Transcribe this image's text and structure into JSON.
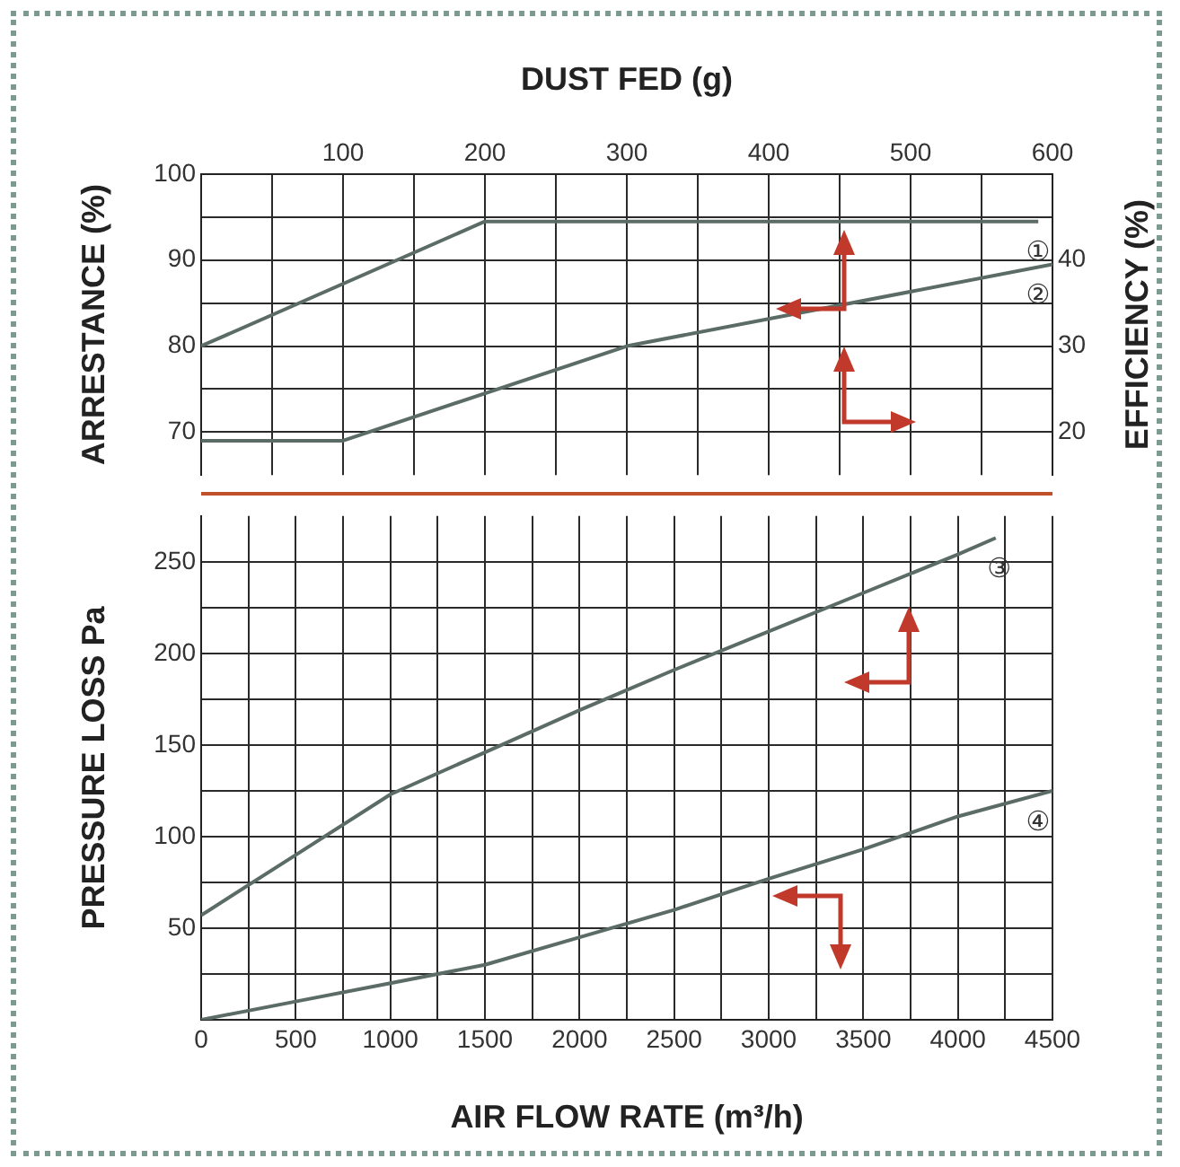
{
  "chart_data": [
    {
      "type": "line",
      "xlabel": "DUST FED (g)",
      "ylabel": "ARRESTANCE (%)",
      "y2label": "EFFICIENCY (%)",
      "xlim": [
        0,
        600
      ],
      "xticks": [
        {
          "value": 0,
          "label": null
        },
        {
          "value": 50,
          "label": null
        },
        100,
        {
          "value": 150,
          "label": null
        },
        200,
        {
          "value": 250,
          "label": null
        },
        300,
        {
          "value": 350,
          "label": null
        },
        400,
        {
          "value": 450,
          "label": null
        },
        500,
        {
          "value": 550,
          "label": null
        },
        600
      ],
      "ylim": [
        65,
        100
      ],
      "yticks": [
        70,
        {
          "value": 75,
          "label": null
        },
        80,
        {
          "value": 85,
          "label": null
        },
        90,
        {
          "value": 95,
          "label": null
        },
        100
      ],
      "y2lim": [
        15,
        50
      ],
      "y2ticks": [
        20,
        30,
        40
      ],
      "grid": true,
      "series": [
        {
          "name": "①",
          "color": "#5b6b66",
          "axis": "y",
          "x": [
            0,
            200,
            590
          ],
          "values": [
            80,
            94.5,
            94.5
          ]
        },
        {
          "name": "②",
          "color": "#5b6b66",
          "axis": "y2",
          "x": [
            0,
            100,
            300,
            600
          ],
          "values": [
            19,
            19,
            30,
            39.5
          ]
        }
      ]
    },
    {
      "type": "line",
      "xlabel": "AIR FLOW RATE (m³/h)",
      "ylabel": "PRESSURE LOSS Pa",
      "xlim": [
        0,
        4500
      ],
      "xticks": [
        0,
        {
          "value": 250,
          "label": null
        },
        500,
        {
          "value": 750,
          "label": null
        },
        1000,
        {
          "value": 1250,
          "label": null
        },
        1500,
        {
          "value": 1750,
          "label": null
        },
        2000,
        {
          "value": 2250,
          "label": null
        },
        2500,
        {
          "value": 2750,
          "label": null
        },
        3000,
        {
          "value": 3250,
          "label": null
        },
        3500,
        {
          "value": 3750,
          "label": null
        },
        4000,
        {
          "value": 4250,
          "label": null
        },
        4500
      ],
      "ylim": [
        0,
        275
      ],
      "yticks": [
        {
          "value": 0,
          "label": null
        },
        {
          "value": 25,
          "label": null
        },
        50,
        {
          "value": 75,
          "label": null
        },
        100,
        {
          "value": 125,
          "label": null
        },
        150,
        {
          "value": 175,
          "label": null
        },
        200,
        {
          "value": 225,
          "label": null
        },
        250
      ],
      "grid": true,
      "series": [
        {
          "name": "③",
          "color": "#5b6b66",
          "axis": "y",
          "x": [
            0,
            500,
            1000,
            1500,
            2000,
            2500,
            3000,
            3500,
            4000,
            4200
          ],
          "values": [
            57,
            90,
            123,
            146,
            169,
            191,
            212,
            233,
            254,
            263
          ]
        },
        {
          "name": "④",
          "color": "#5b6b66",
          "axis": "y",
          "x": [
            0,
            500,
            1000,
            1500,
            2000,
            2500,
            3000,
            3500,
            4000,
            4500
          ],
          "values": [
            0,
            10,
            20,
            30,
            45,
            60,
            77,
            93,
            111,
            125
          ]
        }
      ]
    }
  ]
}
